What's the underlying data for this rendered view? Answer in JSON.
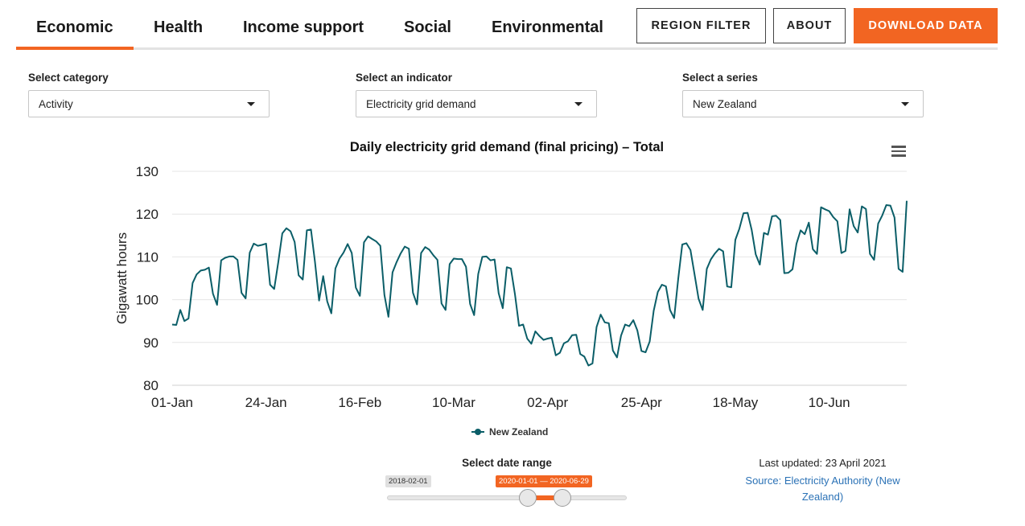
{
  "tabs": [
    {
      "label": "Economic",
      "active": true
    },
    {
      "label": "Health",
      "active": false
    },
    {
      "label": "Income support",
      "active": false
    },
    {
      "label": "Social",
      "active": false
    },
    {
      "label": "Environmental",
      "active": false
    }
  ],
  "buttons": {
    "region_filter": "REGION FILTER",
    "about": "ABOUT",
    "download": "DOWNLOAD DATA"
  },
  "selectors": {
    "category": {
      "label": "Select category",
      "value": "Activity"
    },
    "indicator": {
      "label": "Select an indicator",
      "value": "Electricity grid demand"
    },
    "series": {
      "label": "Select a series",
      "value": "New Zealand"
    }
  },
  "menu_icon": "hamburger-menu-icon",
  "chart_data": {
    "type": "line",
    "title": "Daily electricity grid demand (final pricing) – Total",
    "xlabel": "",
    "ylabel": "Gigawatt hours",
    "ylim": [
      80,
      130
    ],
    "yticks": [
      80,
      90,
      100,
      110,
      120,
      130
    ],
    "x_range": [
      "2020-01-01",
      "2020-06-29"
    ],
    "xtick_labels": [
      {
        "date": "2020-01-01",
        "label": "01-Jan"
      },
      {
        "date": "2020-01-24",
        "label": "24-Jan"
      },
      {
        "date": "2020-02-16",
        "label": "16-Feb"
      },
      {
        "date": "2020-03-10",
        "label": "10-Mar"
      },
      {
        "date": "2020-04-02",
        "label": "02-Apr"
      },
      {
        "date": "2020-04-25",
        "label": "25-Apr"
      },
      {
        "date": "2020-05-18",
        "label": "18-May"
      },
      {
        "date": "2020-06-10",
        "label": "10-Jun"
      }
    ],
    "grid": true,
    "legend": "bottom-center",
    "colors": {
      "series": "#0b5e68"
    },
    "series": [
      {
        "name": "New Zealand",
        "start_date": "2020-01-01",
        "values": [
          94.2,
          94.1,
          97.6,
          95.0,
          95.6,
          103.9,
          105.9,
          106.8,
          107.0,
          107.5,
          101.4,
          98.8,
          109.2,
          109.8,
          110.1,
          110.1,
          109.3,
          101.6,
          100.3,
          111.0,
          113.1,
          112.6,
          112.8,
          113.1,
          103.5,
          102.5,
          108.8,
          115.5,
          116.7,
          116.0,
          113.5,
          105.7,
          104.7,
          116.2,
          116.4,
          108.8,
          99.8,
          105.5,
          99.6,
          96.8,
          107.3,
          109.6,
          111.0,
          113.0,
          110.9,
          102.8,
          100.9,
          113.4,
          114.8,
          114.2,
          113.6,
          112.6,
          101.1,
          96.0,
          106.4,
          108.8,
          110.8,
          112.4,
          111.9,
          101.6,
          98.9,
          110.9,
          112.3,
          111.7,
          110.4,
          109.3,
          99.1,
          97.6,
          108.3,
          109.6,
          109.5,
          109.5,
          107.7,
          99.0,
          96.4,
          106.0,
          110.0,
          110.1,
          109.2,
          109.4,
          101.5,
          98.0,
          107.6,
          107.3,
          101.2,
          93.9,
          94.2,
          90.9,
          89.7,
          92.6,
          91.5,
          90.6,
          90.9,
          91.1,
          87.0,
          87.6,
          89.8,
          90.3,
          91.7,
          91.8,
          87.3,
          86.7,
          84.6,
          85.1,
          93.6,
          96.5,
          94.7,
          94.5,
          88.1,
          86.5,
          91.6,
          94.2,
          93.8,
          95.2,
          92.8,
          88.0,
          87.7,
          90.2,
          97.4,
          101.8,
          103.5,
          103.1,
          97.6,
          95.7,
          104.9,
          112.9,
          113.2,
          111.6,
          106.0,
          100.2,
          97.6,
          107.2,
          109.4,
          110.8,
          111.9,
          111.3,
          103.1,
          102.9,
          114.0,
          116.6,
          120.2,
          120.3,
          116.3,
          110.6,
          108.2,
          115.6,
          115.2,
          119.5,
          119.6,
          118.6,
          106.2,
          106.3,
          107.1,
          113.1,
          116.2,
          115.3,
          118.0,
          111.8,
          110.7,
          121.6,
          121.1,
          120.7,
          119.3,
          118.3,
          110.9,
          111.4,
          121.1,
          117.2,
          115.7,
          121.8,
          121.2,
          110.7,
          109.3,
          117.8,
          119.7,
          122.1,
          122.0,
          119.2,
          107.2,
          106.5,
          123.1
        ]
      }
    ]
  },
  "date_range": {
    "label": "Select date range",
    "min_value": "2018-02-01",
    "current_value": "2020-01-01 — 2020-06-29"
  },
  "footer": {
    "last_updated": "Last updated: 23 April 2021",
    "source": "Source: Electricity Authority (New Zealand)"
  }
}
